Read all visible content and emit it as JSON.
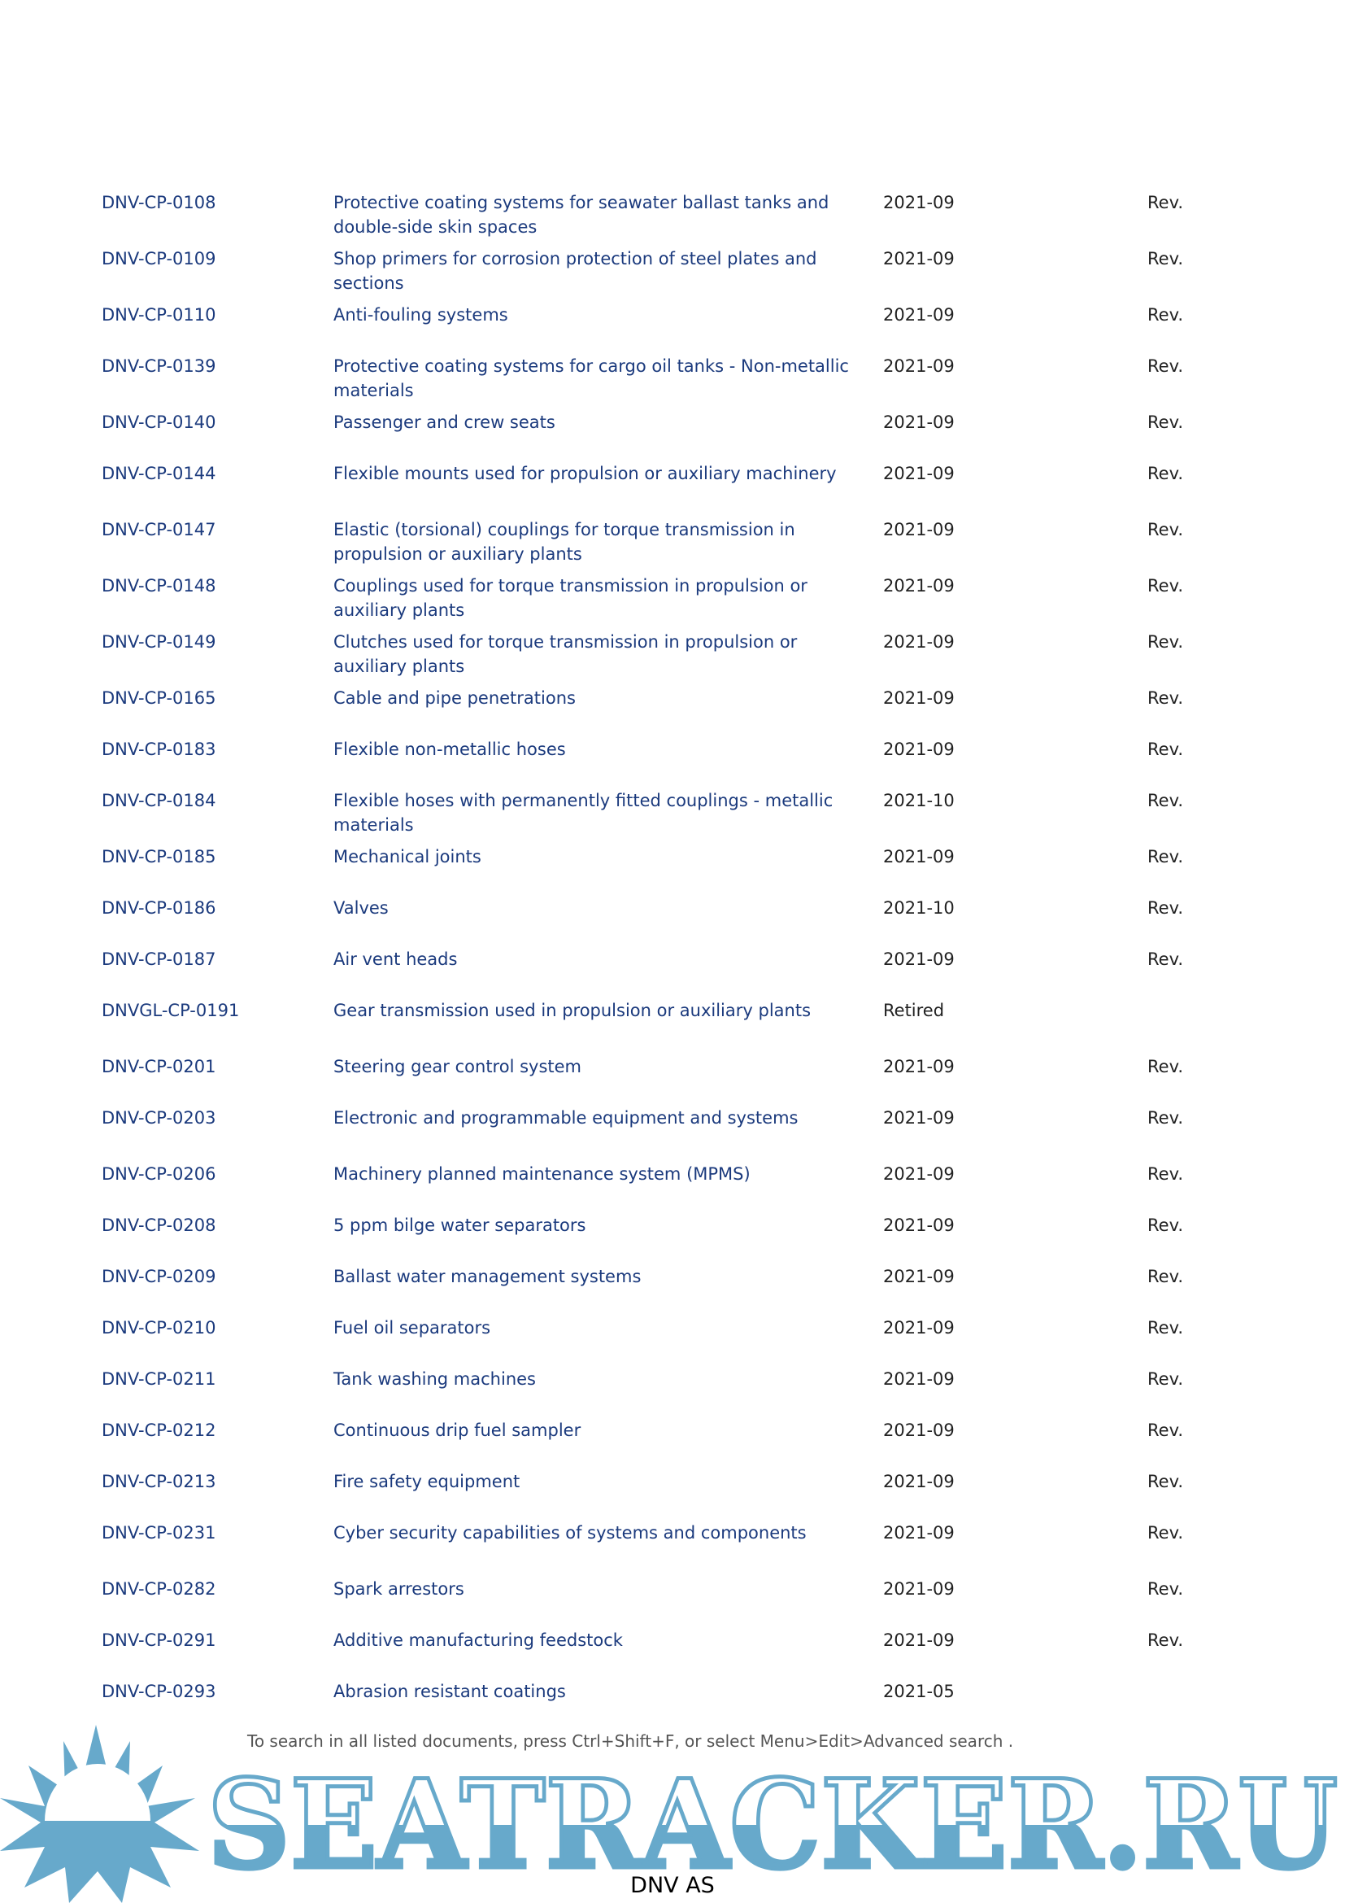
{
  "rows": [
    {
      "code": "DNV-CP-0108",
      "title": "Protective coating systems for seawater ballast tanks and double-side skin spaces",
      "date": "2021-09",
      "status": "Rev.",
      "lines": 2
    },
    {
      "code": "DNV-CP-0109",
      "title": "Shop primers for corrosion protection of steel plates and sections",
      "date": "2021-09",
      "status": "Rev.",
      "lines": 2
    },
    {
      "code": "DNV-CP-0110",
      "title": "Anti-fouling systems",
      "date": "2021-09",
      "status": "Rev.",
      "lines": 1
    },
    {
      "code": "DNV-CP-0139",
      "title": "Protective coating systems for cargo oil tanks - Non-metallic materials",
      "date": "2021-09",
      "status": "Rev.",
      "lines": 2
    },
    {
      "code": "DNV-CP-0140",
      "title": "Passenger and crew seats",
      "date": "2021-09",
      "status": "Rev.",
      "lines": 1
    },
    {
      "code": "DNV-CP-0144",
      "title": "Flexible mounts used for propulsion or auxiliary machinery",
      "date": "2021-09",
      "status": "Rev.",
      "lines": 2
    },
    {
      "code": "DNV-CP-0147",
      "title": "Elastic (torsional) couplings for torque transmission in propulsion or auxiliary plants",
      "date": "2021-09",
      "status": "Rev.",
      "lines": 2
    },
    {
      "code": "DNV-CP-0148",
      "title": "Couplings used for torque transmission in propulsion or auxiliary plants",
      "date": "2021-09",
      "status": "Rev.",
      "lines": 2
    },
    {
      "code": "DNV-CP-0149",
      "title": "Clutches used for torque transmission in propulsion or auxiliary plants",
      "date": "2021-09",
      "status": "Rev.",
      "lines": 2
    },
    {
      "code": "DNV-CP-0165",
      "title": "Cable and pipe penetrations",
      "date": "2021-09",
      "status": "Rev.",
      "lines": 1
    },
    {
      "code": "DNV-CP-0183",
      "title": "Flexible non-metallic hoses",
      "date": "2021-09",
      "status": "Rev.",
      "lines": 1
    },
    {
      "code": "DNV-CP-0184",
      "title": "Flexible hoses with permanently fitted couplings - metallic materials",
      "date": "2021-10",
      "status": "Rev.",
      "lines": 2
    },
    {
      "code": "DNV-CP-0185",
      "title": "Mechanical joints",
      "date": "2021-09",
      "status": "Rev.",
      "lines": 1
    },
    {
      "code": "DNV-CP-0186",
      "title": "Valves",
      "date": "2021-10",
      "status": "Rev.",
      "lines": 1
    },
    {
      "code": "DNV-CP-0187",
      "title": "Air vent heads",
      "date": "2021-09",
      "status": "Rev.",
      "lines": 1
    },
    {
      "code": "DNVGL-CP-0191",
      "title": "Gear transmission used in propulsion or auxiliary plants",
      "date": "Retired",
      "status": "",
      "lines": 2
    },
    {
      "code": "DNV-CP-0201",
      "title": "Steering gear control system",
      "date": "2021-09",
      "status": "Rev.",
      "lines": 1
    },
    {
      "code": "DNV-CP-0203",
      "title": "Electronic and programmable equipment and systems",
      "date": "2021-09",
      "status": "Rev.",
      "lines": 2
    },
    {
      "code": "DNV-CP-0206",
      "title": "Machinery planned maintenance system (MPMS)",
      "date": "2021-09",
      "status": "Rev.",
      "lines": 1
    },
    {
      "code": "DNV-CP-0208",
      "title": "5 ppm bilge water separators",
      "date": "2021-09",
      "status": "Rev.",
      "lines": 1
    },
    {
      "code": "DNV-CP-0209",
      "title": "Ballast water management systems",
      "date": "2021-09",
      "status": "Rev.",
      "lines": 1
    },
    {
      "code": "DNV-CP-0210",
      "title": "Fuel oil separators",
      "date": "2021-09",
      "status": "Rev.",
      "lines": 1
    },
    {
      "code": "DNV-CP-0211",
      "title": "Tank washing machines",
      "date": "2021-09",
      "status": "Rev.",
      "lines": 1
    },
    {
      "code": "DNV-CP-0212",
      "title": "Continuous drip fuel sampler",
      "date": "2021-09",
      "status": "Rev.",
      "lines": 1
    },
    {
      "code": "DNV-CP-0213",
      "title": "Fire safety equipment",
      "date": "2021-09",
      "status": "Rev.",
      "lines": 1
    },
    {
      "code": "DNV-CP-0231",
      "title": "Cyber security capabilities of systems and components",
      "date": "2021-09",
      "status": "Rev.",
      "lines": 2
    },
    {
      "code": "DNV-CP-0282",
      "title": "Spark arrestors",
      "date": "2021-09",
      "status": "Rev.",
      "lines": 1
    },
    {
      "code": "DNV-CP-0291",
      "title": "Additive manufacturing feedstock",
      "date": "2021-09",
      "status": "Rev.",
      "lines": 1
    },
    {
      "code": "DNV-CP-0293",
      "title": "Abrasion resistant coatings",
      "date": "2021-05",
      "status": "",
      "lines": 1
    }
  ],
  "footer": {
    "note": "To search in all listed documents, press Ctrl+Shift+F, or select Menu>Edit>Advanced search .",
    "company": "DNV AS"
  },
  "watermark": {
    "text": "SEATRACKER.RU",
    "color": "#67a9cb"
  },
  "colors": {
    "link": "#1b3a7d",
    "text": "#222222"
  }
}
